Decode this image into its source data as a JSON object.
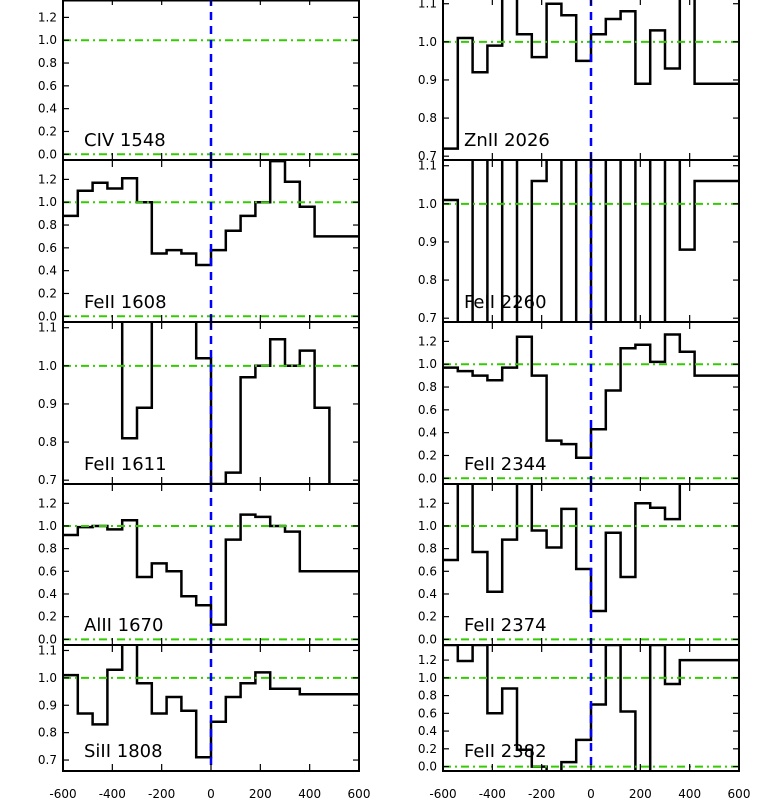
{
  "figure": {
    "xticks": [
      -600,
      -400,
      -200,
      0,
      200,
      400,
      600
    ]
  },
  "chart_data": [
    {
      "type": "line",
      "title": "CIV 1548",
      "xlim": [
        -600,
        600
      ],
      "ylim": [
        -0.05,
        1.37
      ],
      "yticks": [
        0.0,
        0.2,
        0.4,
        0.6,
        0.8,
        1.0,
        1.2
      ],
      "yticklabels": [
        "0.0",
        "0.2",
        "0.4",
        "0.6",
        "0.8",
        "1.0",
        "1.2"
      ],
      "x": [
        -600,
        -540
      ],
      "y": [
        1.35,
        1.35
      ]
    },
    {
      "type": "line",
      "title": "FeII 1608",
      "xlim": [
        -600,
        600
      ],
      "ylim": [
        -0.05,
        1.37
      ],
      "yticks": [
        0.0,
        0.2,
        0.4,
        0.6,
        0.8,
        1.0,
        1.2
      ],
      "yticklabels": [
        "0.0",
        "0.2",
        "0.4",
        "0.6",
        "0.8",
        "1.0",
        "1.2"
      ],
      "x": [
        -600,
        -540,
        -480,
        -420,
        -360,
        -300,
        -240,
        -180,
        -120,
        -60,
        0,
        60,
        120,
        180,
        240,
        300,
        360,
        420,
        480,
        540,
        600
      ],
      "y": [
        0.88,
        1.1,
        1.17,
        1.12,
        1.21,
        1.0,
        0.55,
        0.58,
        0.55,
        0.45,
        0.58,
        0.75,
        0.88,
        1.0,
        1.36,
        1.18,
        0.96,
        0.7,
        0.7,
        0.7,
        0.7
      ]
    },
    {
      "type": "line",
      "title": "FeII 1611",
      "xlim": [
        -600,
        600
      ],
      "ylim": [
        0.69,
        1.115
      ],
      "yticks": [
        0.7,
        0.8,
        0.9,
        1.0,
        1.1
      ],
      "yticklabels": [
        "0.7",
        "0.8",
        "0.9",
        "1.0",
        "1.1"
      ],
      "x": [
        -600,
        -540,
        -480,
        -420,
        -360,
        -300,
        -240,
        -180,
        -120,
        -60,
        0,
        60,
        120,
        180,
        240,
        300,
        360,
        420,
        480,
        540,
        600
      ],
      "y": [
        1.15,
        1.15,
        1.15,
        1.15,
        0.81,
        0.89,
        1.16,
        1.16,
        1.16,
        1.02,
        0.69,
        0.72,
        0.97,
        1.0,
        1.07,
        1.0,
        1.04,
        0.89,
        0.66,
        0.66,
        0.66
      ]
    },
    {
      "type": "line",
      "title": "AlII 1670",
      "xlim": [
        -600,
        600
      ],
      "ylim": [
        -0.05,
        1.37
      ],
      "yticks": [
        0.0,
        0.2,
        0.4,
        0.6,
        0.8,
        1.0,
        1.2
      ],
      "yticklabels": [
        "0.0",
        "0.2",
        "0.4",
        "0.6",
        "0.8",
        "1.0",
        "1.2"
      ],
      "x": [
        -600,
        -540,
        -480,
        -420,
        -360,
        -300,
        -240,
        -180,
        -120,
        -60,
        0,
        60,
        120,
        180,
        240,
        300,
        360,
        420,
        480,
        540,
        600
      ],
      "y": [
        0.92,
        0.99,
        1.0,
        0.97,
        1.05,
        0.55,
        0.67,
        0.6,
        0.38,
        0.3,
        0.13,
        0.88,
        1.1,
        1.08,
        1.0,
        0.95,
        0.6,
        0.6,
        0.6,
        0.6,
        0.6
      ]
    },
    {
      "type": "line",
      "title": "SiII 1808",
      "xlim": [
        -600,
        600
      ],
      "ylim": [
        0.66,
        1.12
      ],
      "yticks": [
        0.7,
        0.8,
        0.9,
        1.0,
        1.1
      ],
      "yticklabels": [
        "0.7",
        "0.8",
        "0.9",
        "1.0",
        "1.1"
      ],
      "x": [
        -600,
        -540,
        -480,
        -420,
        -360,
        -300,
        -240,
        -180,
        -120,
        -60,
        0,
        60,
        120,
        180,
        240,
        300,
        360,
        420,
        480,
        540,
        600
      ],
      "y": [
        1.01,
        0.87,
        0.83,
        1.03,
        1.13,
        0.98,
        0.87,
        0.93,
        0.88,
        0.71,
        0.84,
        0.93,
        0.98,
        1.02,
        0.96,
        0.96,
        0.94,
        0.94,
        0.94,
        0.94,
        0.94
      ]
    },
    {
      "type": "line",
      "title": "ZnII 2026",
      "xlim": [
        -600,
        600
      ],
      "ylim": [
        0.69,
        1.115
      ],
      "yticks": [
        0.7,
        0.8,
        0.9,
        1.0,
        1.1
      ],
      "yticklabels": [
        "0.7",
        "0.8",
        "0.9",
        "1.0",
        "1.1"
      ],
      "x": [
        -600,
        -540,
        -480,
        -420,
        -360,
        -300,
        -240,
        -180,
        -120,
        -60,
        0,
        60,
        120,
        180,
        240,
        300,
        360,
        420,
        480,
        540,
        600
      ],
      "y": [
        0.72,
        1.01,
        0.92,
        0.99,
        1.12,
        1.02,
        0.96,
        1.1,
        1.07,
        0.95,
        1.02,
        1.06,
        1.08,
        0.89,
        1.03,
        0.93,
        1.12,
        0.89,
        0.89,
        0.89,
        0.89
      ]
    },
    {
      "type": "line",
      "title": "FeII 2260",
      "xlim": [
        -600,
        600
      ],
      "ylim": [
        0.69,
        1.115
      ],
      "yticks": [
        0.7,
        0.8,
        0.9,
        1.0,
        1.1
      ],
      "yticklabels": [
        "0.7",
        "0.8",
        "0.9",
        "1.0",
        "1.1"
      ],
      "x": [
        -600,
        -540,
        -480,
        -420,
        -360,
        -300,
        -240,
        -180,
        -120,
        -60,
        0,
        60,
        120,
        180,
        240,
        300,
        360,
        420,
        480,
        540,
        600
      ],
      "y": [
        1.01,
        0.63,
        1.13,
        0.63,
        1.13,
        0.63,
        1.06,
        1.13,
        0.63,
        1.13,
        0.63,
        1.13,
        0.63,
        1.13,
        0.63,
        1.13,
        0.88,
        1.06,
        1.06,
        1.06,
        1.06
      ]
    },
    {
      "type": "line",
      "title": "FeII 2344",
      "xlim": [
        -600,
        600
      ],
      "ylim": [
        -0.05,
        1.37
      ],
      "yticks": [
        0.0,
        0.2,
        0.4,
        0.6,
        0.8,
        1.0,
        1.2
      ],
      "yticklabels": [
        "0.0",
        "0.2",
        "0.4",
        "0.6",
        "0.8",
        "1.0",
        "1.2"
      ],
      "x": [
        -600,
        -540,
        -480,
        -420,
        -360,
        -300,
        -240,
        -180,
        -120,
        -60,
        0,
        60,
        120,
        180,
        240,
        300,
        360,
        420,
        480,
        540,
        600
      ],
      "y": [
        0.97,
        0.94,
        0.9,
        0.86,
        0.97,
        1.24,
        0.9,
        0.33,
        0.3,
        0.18,
        0.43,
        0.77,
        1.14,
        1.17,
        1.02,
        1.26,
        1.11,
        0.9,
        0.9,
        0.9,
        0.9
      ]
    },
    {
      "type": "line",
      "title": "FeII 2374",
      "xlim": [
        -600,
        600
      ],
      "ylim": [
        -0.05,
        1.37
      ],
      "yticks": [
        0.0,
        0.2,
        0.4,
        0.6,
        0.8,
        1.0,
        1.2
      ],
      "yticklabels": [
        "0.0",
        "0.2",
        "0.4",
        "0.6",
        "0.8",
        "1.0",
        "1.2"
      ],
      "x": [
        -600,
        -540,
        -480,
        -420,
        -360,
        -300,
        -240,
        -180,
        -120,
        -60,
        0,
        60,
        120,
        180,
        240,
        300,
        360,
        420,
        480,
        540,
        600
      ],
      "y": [
        0.7,
        1.65,
        0.77,
        0.42,
        0.88,
        1.65,
        0.96,
        0.81,
        1.15,
        0.62,
        0.25,
        0.94,
        0.55,
        1.2,
        1.16,
        1.06,
        1.4,
        1.4,
        1.4,
        1.4,
        1.4
      ]
    },
    {
      "type": "line",
      "title": "FeII 2382",
      "xlim": [
        -600,
        600
      ],
      "ylim": [
        -0.05,
        1.37
      ],
      "yticks": [
        0.0,
        0.2,
        0.4,
        0.6,
        0.8,
        1.0,
        1.2
      ],
      "yticklabels": [
        "0.0",
        "0.2",
        "0.4",
        "0.6",
        "0.8",
        "1.0",
        "1.2"
      ],
      "x": [
        -600,
        -540,
        -480,
        -420,
        -360,
        -300,
        -240,
        -180,
        -120,
        -60,
        0,
        60,
        120,
        180,
        240,
        300,
        360,
        420,
        480,
        540,
        600
      ],
      "y": [
        1.37,
        1.19,
        1.37,
        0.6,
        0.88,
        0.19,
        0.0,
        -0.1,
        0.05,
        0.3,
        0.7,
        1.37,
        0.62,
        -0.2,
        1.37,
        0.93,
        1.2,
        1.2,
        1.2,
        1.2,
        1.2
      ]
    }
  ],
  "colors": {
    "line": "#000000",
    "continuum": "#33cc00",
    "zero_velocity": "#0000ff"
  }
}
